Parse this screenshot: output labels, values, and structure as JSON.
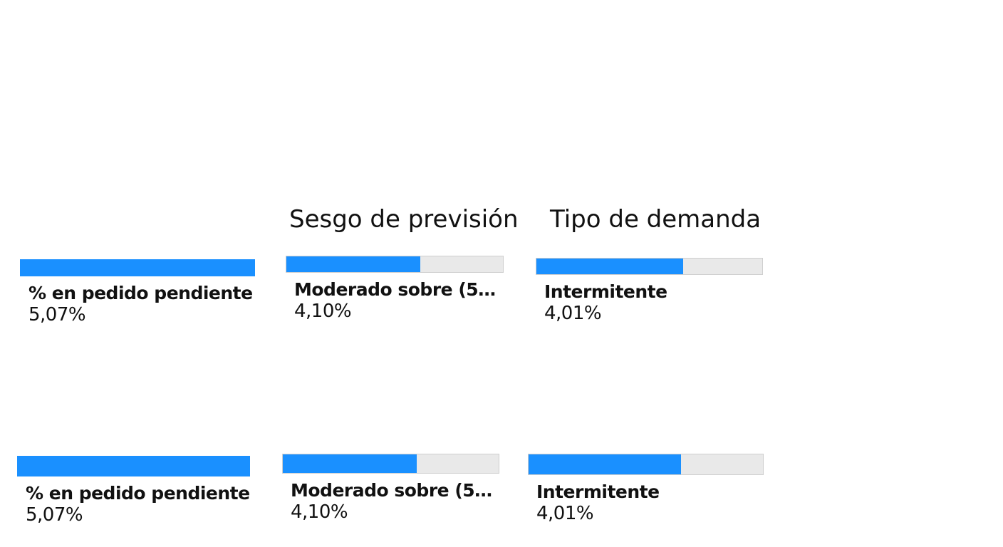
{
  "headings": {
    "forecast_bias": "Sesgo de previsión",
    "demand_type": "Tipo de demanda"
  },
  "rows": [
    {
      "backorder": {
        "label": "% en pedido pendiente",
        "value": "5,07%",
        "fill_fraction": 1.0
      },
      "forecast_bias": {
        "label": "Moderado sobre (5% t...",
        "value": "4,10%",
        "fill_fraction": 0.62
      },
      "demand_type": {
        "label": "Intermitente",
        "value": "4,01%",
        "fill_fraction": 0.65
      }
    },
    {
      "backorder": {
        "label": "% en pedido pendiente",
        "value": "5,07%",
        "fill_fraction": 1.0
      },
      "forecast_bias": {
        "label": "Moderado sobre (5% t...",
        "value": "4,10%",
        "fill_fraction": 0.62
      },
      "demand_type": {
        "label": "Intermitente",
        "value": "4,01%",
        "fill_fraction": 0.65
      }
    }
  ],
  "colors": {
    "bar_fill": "#1a90ff",
    "bar_track": "#e9e9e9"
  }
}
